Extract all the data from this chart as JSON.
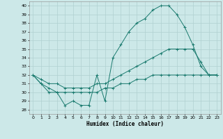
{
  "title": "",
  "xlabel": "Humidex (Indice chaleur)",
  "bg_color": "#cce8e8",
  "line_color": "#1a7a6e",
  "grid_color": "#b0d0d0",
  "xlim": [
    -0.5,
    23.5
  ],
  "ylim": [
    27.5,
    40.5
  ],
  "yticks": [
    28,
    29,
    30,
    31,
    32,
    33,
    34,
    35,
    36,
    37,
    38,
    39,
    40
  ],
  "xticks": [
    0,
    1,
    2,
    3,
    4,
    5,
    6,
    7,
    8,
    9,
    10,
    11,
    12,
    13,
    14,
    15,
    16,
    17,
    18,
    19,
    20,
    21,
    22,
    23
  ],
  "hours": [
    0,
    1,
    2,
    3,
    4,
    5,
    6,
    7,
    8,
    9,
    10,
    11,
    12,
    13,
    14,
    15,
    16,
    17,
    18,
    19,
    20,
    21,
    22,
    23
  ],
  "line_max": [
    32,
    31,
    30,
    30,
    28.5,
    29,
    28.5,
    28.5,
    32,
    29,
    34,
    35.5,
    37,
    38,
    38.5,
    39.5,
    40,
    40,
    39,
    37.5,
    35.5,
    33,
    32,
    32
  ],
  "line_mean": [
    32,
    31.5,
    31,
    31,
    30.5,
    30.5,
    30.5,
    30.5,
    31,
    31,
    31.5,
    32,
    32.5,
    33,
    33.5,
    34,
    34.5,
    35,
    35,
    35,
    35,
    33.5,
    32,
    32
  ],
  "line_min": [
    32,
    31,
    30.5,
    30,
    30,
    30,
    30,
    30,
    30,
    30.5,
    30.5,
    31,
    31,
    31.5,
    31.5,
    32,
    32,
    32,
    32,
    32,
    32,
    32,
    32,
    32
  ]
}
